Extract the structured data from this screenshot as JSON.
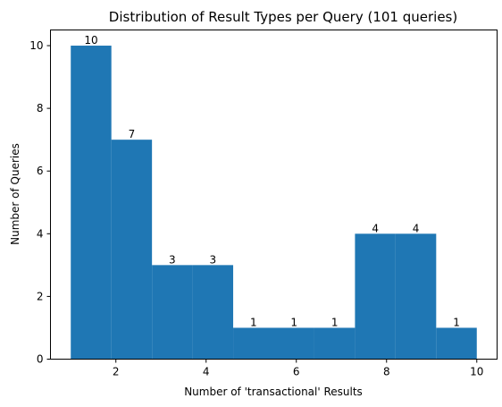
{
  "chart_data": {
    "type": "bar",
    "title": "Distribution of Result Types per Query (101 queries)",
    "xlabel": "Number of 'transactional' Results",
    "ylabel": "Number of Queries",
    "xlim": [
      0.55,
      10.45
    ],
    "ylim": [
      0,
      10.5
    ],
    "bin_edges": [
      1.0,
      1.9,
      2.8,
      3.7,
      4.6,
      5.5,
      6.4,
      7.3,
      8.2,
      9.1,
      10.0
    ],
    "values": [
      10,
      7,
      3,
      3,
      1,
      1,
      1,
      4,
      4,
      1
    ],
    "data_labels": [
      "10",
      "7",
      "3",
      "3",
      "1",
      "1",
      "1",
      "4",
      "4",
      "1"
    ],
    "xticks": [
      2,
      4,
      6,
      8,
      10
    ],
    "xtick_labels": [
      "2",
      "4",
      "6",
      "8",
      "10"
    ],
    "yticks": [
      0,
      2,
      4,
      6,
      8,
      10
    ],
    "ytick_labels": [
      "0",
      "2",
      "4",
      "6",
      "8",
      "10"
    ],
    "bar_color": "#1f77b4",
    "grid": false,
    "legend": false
  }
}
